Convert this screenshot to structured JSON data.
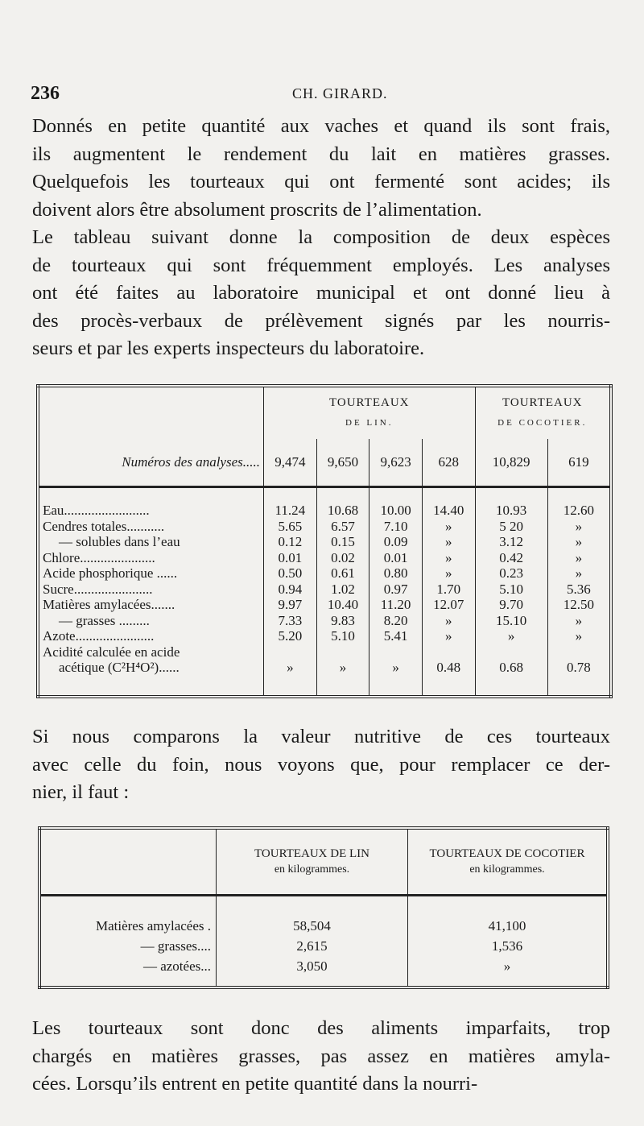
{
  "header": {
    "page_number": "236",
    "running_title": "CH. GIRARD."
  },
  "paragraph1": [
    "Donnés en petite quantité aux vaches et quand ils sont frais,",
    "ils augmentent le rendement du lait en matières grasses.",
    "Quelquefois les tourteaux qui ont fermenté sont acides; ils",
    "doivent alors être absolument proscrits de l’alimentation.",
    "Le tableau suivant donne la composition de deux espèces",
    "de tourteaux qui sont fréquemment employés. Les analyses",
    "ont été faites au laboratoire municipal et ont donné lieu à",
    "des procès-verbaux de prélèvement signés par les nourris-",
    "seurs et par les experts inspecteurs du laboratoire."
  ],
  "table1": {
    "group1": {
      "title": "TOURTEAUX",
      "sub": "DE LIN."
    },
    "group2": {
      "title": "TOURTEAUX",
      "sub": "DE COCOTIER."
    },
    "numbers_label": "Numéros des analyses.....",
    "numbers": [
      "9,474",
      "9,650",
      "9,623",
      "628",
      "10,829",
      "619"
    ],
    "rows": [
      {
        "label": "Eau.........................",
        "values": [
          "11.24",
          "10.68",
          "10.00",
          "14.40",
          "10.93",
          "12.60"
        ]
      },
      {
        "label": "Cendres totales...........",
        "values": [
          "5.65",
          "6.57",
          "7.10",
          "»",
          "5 20",
          "»"
        ]
      },
      {
        "label": "— solubles dans l’eau",
        "values": [
          "0.12",
          "0.15",
          "0.09",
          "»",
          "3.12",
          "»"
        ]
      },
      {
        "label": "Chlore......................",
        "values": [
          "0.01",
          "0.02",
          "0.01",
          "»",
          "0.42",
          "»"
        ]
      },
      {
        "label": "Acide phosphorique ......",
        "values": [
          "0.50",
          "0.61",
          "0.80",
          "»",
          "0.23",
          "»"
        ]
      },
      {
        "label": "Sucre.......................",
        "values": [
          "0.94",
          "1.02",
          "0.97",
          "1.70",
          "5.10",
          "5.36"
        ]
      },
      {
        "label": "Matières amylacées.......",
        "values": [
          "9.97",
          "10.40",
          "11.20",
          "12.07",
          "9.70",
          "12.50"
        ]
      },
      {
        "label": "— grasses .........",
        "values": [
          "7.33",
          "9.83",
          "8.20",
          "»",
          "15.10",
          "»"
        ]
      },
      {
        "label": "Azote.......................",
        "values": [
          "5.20",
          "5.10",
          "5.41",
          "»",
          "»",
          "»"
        ]
      },
      {
        "label": "Acidité calculée en acide",
        "values": [
          "",
          "",
          "",
          "",
          "",
          ""
        ]
      },
      {
        "label": "acétique (C²H⁴O²)......",
        "values": [
          "»",
          "»",
          "»",
          "0.48",
          "0.68",
          "0.78"
        ]
      }
    ]
  },
  "paragraph2": [
    "Si nous comparons la valeur nutritive de ces tourteaux",
    "avec celle du foin, nous voyons que, pour remplacer ce der-",
    "nier, il faut :"
  ],
  "table2": {
    "col1": {
      "title": "TOURTEAUX DE LIN",
      "unit": "en kilogrammes."
    },
    "col2": {
      "title": "TOURTEAUX DE COCOTIER",
      "unit": "en kilogrammes."
    },
    "rows": [
      {
        "label": "Matières amylacées .",
        "values": [
          "58,504",
          "41,100"
        ]
      },
      {
        "label": "— grasses....",
        "values": [
          "2,615",
          "1,536"
        ]
      },
      {
        "label": "— azotées...",
        "values": [
          "3,050",
          "»"
        ]
      }
    ]
  },
  "paragraph3": [
    "Les tourteaux sont donc des aliments imparfaits, trop",
    "chargés en matières grasses, pas assez en matières amyla-",
    "cées. Lorsqu’ils entrent en petite quantité dans la nourri-"
  ]
}
